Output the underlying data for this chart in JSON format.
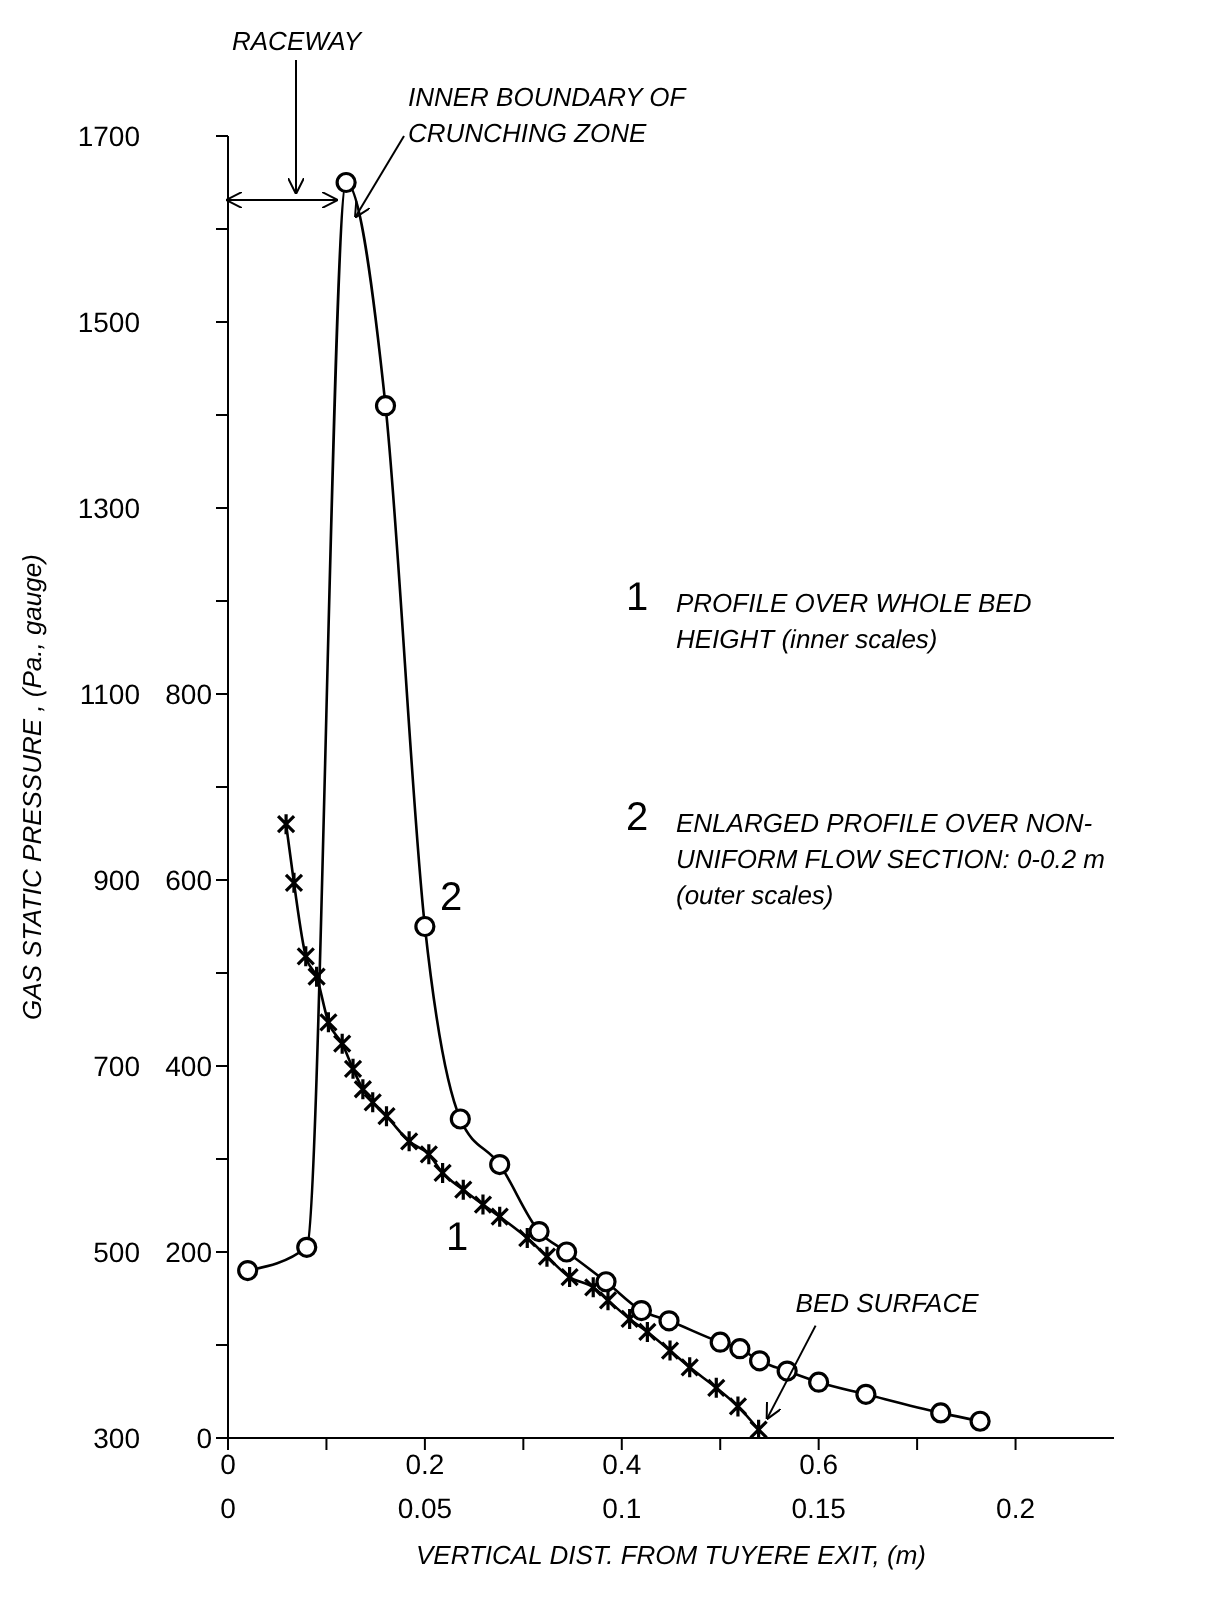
{
  "chart_data": {
    "type": "line",
    "xlabel": "VERTICAL DIST.  FROM TUYERE EXIT, (m)",
    "ylabel": "GAS STATIC PRESSURE , (Pa., gauge)",
    "xlim": [
      0,
      0.9
    ],
    "xticks": [
      0,
      {
        "value": 0.1,
        "label": null
      },
      0.2,
      {
        "value": 0.3,
        "label": null
      },
      0.4,
      {
        "value": 0.5,
        "label": null
      },
      0.6,
      {
        "value": 0.7,
        "label": null
      },
      {
        "value": 0.8,
        "label": null
      }
    ],
    "x2lim": [
      0,
      0.225
    ],
    "x2ticks": [
      0,
      0.05,
      0.1,
      0.15,
      0.2
    ],
    "ylim": [
      300,
      1700
    ],
    "yticks": [
      300,
      500,
      700,
      900,
      1100,
      1300,
      1500,
      1700
    ],
    "y2lim": [
      0,
      1400
    ],
    "y2ticks": [
      0,
      {
        "value": 100,
        "label": null
      },
      200,
      {
        "value": 300,
        "label": null
      },
      400,
      {
        "value": 500,
        "label": null
      },
      600,
      {
        "value": 700,
        "label": null
      },
      800,
      {
        "value": 900,
        "label": null
      },
      {
        "value": 1000,
        "label": null
      },
      {
        "value": 1100,
        "label": null
      },
      {
        "value": 1200,
        "label": null
      },
      {
        "value": 1300,
        "label": null
      },
      {
        "value": 1400,
        "label": null
      }
    ],
    "line_style": "solid",
    "series": [
      {
        "name": "1",
        "color": "#000000",
        "marker": "cross",
        "axis": "y2",
        "x": [
          0.059,
          0.067,
          0.079,
          0.09,
          0.102,
          0.116,
          0.127,
          0.137,
          0.147,
          0.161,
          0.184,
          0.204,
          0.218,
          0.239,
          0.259,
          0.276,
          0.304,
          0.324,
          0.347,
          0.371,
          0.386,
          0.408,
          0.426,
          0.449,
          0.469,
          0.496,
          0.518,
          0.539
        ],
        "values": [
          660,
          597,
          518,
          496,
          447,
          424,
          397,
          375,
          361,
          346,
          319,
          305,
          285,
          267,
          251,
          238,
          215,
          195,
          173,
          162,
          148,
          128,
          114,
          94,
          76,
          54,
          34,
          9
        ]
      },
      {
        "name": "2",
        "color": "#000000",
        "marker": "circle",
        "axis": "x2",
        "x": [
          0.005,
          0.02,
          0.03,
          0.04,
          0.05,
          0.059,
          0.069,
          0.079,
          0.086,
          0.096,
          0.105,
          0.112,
          0.125,
          0.13,
          0.135,
          0.142,
          0.15,
          0.162,
          0.181,
          0.191
        ],
        "values": [
          480,
          505,
          1650,
          1410,
          850,
          643,
          594,
          522,
          500,
          468,
          437,
          426,
          403,
          396,
          383,
          372,
          360,
          347,
          327,
          318
        ]
      }
    ],
    "annotations": [
      "RACEWAY",
      "INNER BOUNDARY OF CRUNCHING ZONE",
      "PROFILE OVER WHOLE BED HEIGHT (inner scales)",
      "ENLARGED PROFILE OVER NON-UNIFORM FLOW SECTION: 0-0.2 m (outer scales)",
      {
        "text": "BED SURFACE",
        "x": 0.54,
        "y": 309
      }
    ]
  }
}
